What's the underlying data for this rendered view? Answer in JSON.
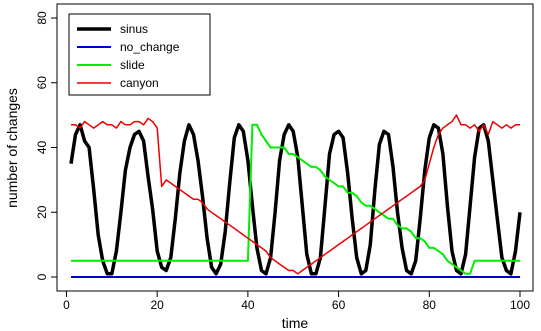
{
  "chart_data": {
    "type": "line",
    "title": "",
    "xlabel": "time",
    "ylabel": "number of changes",
    "xlim": [
      1,
      100
    ],
    "ylim": [
      0,
      80
    ],
    "xticks": [
      0,
      20,
      40,
      60,
      80,
      100
    ],
    "yticks": [
      0,
      20,
      40,
      60,
      80
    ],
    "grid": false,
    "legend_position": "top-left",
    "series": [
      {
        "name": "sinus",
        "color": "#000000",
        "x": [
          1,
          2,
          3,
          4,
          5,
          6,
          7,
          8,
          9,
          10,
          11,
          12,
          13,
          14,
          15,
          16,
          17,
          18,
          19,
          20,
          21,
          22,
          23,
          24,
          25,
          26,
          27,
          28,
          29,
          30,
          31,
          32,
          33,
          34,
          35,
          36,
          37,
          38,
          39,
          40,
          41,
          42,
          43,
          44,
          45,
          46,
          47,
          48,
          49,
          50,
          51,
          52,
          53,
          54,
          55,
          56,
          57,
          58,
          59,
          60,
          61,
          62,
          63,
          64,
          65,
          66,
          67,
          68,
          69,
          70,
          71,
          72,
          73,
          74,
          75,
          76,
          77,
          78,
          79,
          80,
          81,
          82,
          83,
          84,
          85,
          86,
          87,
          88,
          89,
          90,
          91,
          92,
          93,
          94,
          95,
          96,
          97,
          98,
          99,
          100
        ],
        "values": [
          35,
          44,
          47,
          42,
          40,
          27,
          13,
          5,
          1,
          1,
          8,
          20,
          33,
          40,
          44,
          45,
          42,
          31,
          21,
          8,
          3,
          2,
          6,
          18,
          32,
          42,
          47,
          44,
          36,
          25,
          12,
          3,
          1,
          4,
          14,
          29,
          43,
          47,
          45,
          36,
          22,
          9,
          2,
          1,
          6,
          20,
          36,
          44,
          47,
          45,
          37,
          22,
          7,
          1,
          1,
          6,
          22,
          38,
          44,
          45,
          43,
          32,
          18,
          6,
          1,
          2,
          10,
          27,
          41,
          45,
          44,
          34,
          20,
          9,
          2,
          1,
          5,
          18,
          33,
          43,
          47,
          46,
          38,
          22,
          8,
          2,
          1,
          7,
          22,
          37,
          46,
          47,
          42,
          30,
          18,
          6,
          2,
          1,
          8,
          20
        ]
      },
      {
        "name": "no_change",
        "color": "#0000cc",
        "x": [
          1,
          100
        ],
        "values": [
          0,
          0
        ]
      },
      {
        "name": "slide",
        "color": "#00ee00",
        "x": [
          1,
          40,
          41,
          42,
          43,
          44,
          45,
          46,
          47,
          48,
          49,
          50,
          51,
          52,
          53,
          54,
          55,
          56,
          57,
          58,
          59,
          60,
          61,
          62,
          63,
          64,
          65,
          66,
          67,
          68,
          69,
          70,
          71,
          72,
          73,
          74,
          75,
          76,
          77,
          78,
          79,
          80,
          81,
          82,
          83,
          84,
          85,
          86,
          87,
          88,
          89,
          90,
          91,
          100
        ],
        "values": [
          5,
          5,
          47,
          47,
          44,
          42,
          40,
          40,
          40,
          40,
          38,
          38,
          37,
          36,
          35,
          34,
          34,
          33,
          31,
          30,
          29,
          28,
          28,
          26,
          26,
          25,
          23,
          22,
          22,
          21,
          20,
          19,
          18,
          18,
          16,
          15,
          15,
          14,
          12,
          12,
          11,
          9,
          9,
          8,
          7,
          5,
          4,
          3,
          2,
          1,
          1,
          5,
          5,
          5
        ]
      },
      {
        "name": "canyon",
        "color": "#ee0000",
        "x": [
          1,
          2,
          3,
          4,
          5,
          6,
          7,
          8,
          9,
          10,
          11,
          12,
          13,
          14,
          15,
          16,
          17,
          18,
          19,
          20,
          21,
          22,
          23,
          24,
          25,
          26,
          27,
          28,
          29,
          30,
          31,
          32,
          33,
          34,
          35,
          36,
          37,
          38,
          39,
          40,
          41,
          42,
          43,
          44,
          45,
          46,
          47,
          48,
          49,
          50,
          51,
          52,
          53,
          54,
          55,
          56,
          57,
          58,
          59,
          60,
          61,
          62,
          63,
          64,
          65,
          66,
          67,
          68,
          69,
          70,
          71,
          72,
          73,
          74,
          75,
          76,
          77,
          78,
          79,
          80,
          81,
          82,
          83,
          84,
          85,
          86,
          87,
          88,
          89,
          90,
          91,
          92,
          93,
          94,
          95,
          96,
          97,
          98,
          99,
          100
        ],
        "values": [
          47,
          47,
          46,
          48,
          47,
          46,
          47,
          48,
          47,
          47,
          46,
          48,
          47,
          47,
          48,
          48,
          47,
          49,
          48,
          46,
          28,
          30,
          29,
          28,
          27,
          26,
          25,
          24,
          24,
          23,
          21,
          20,
          19,
          18,
          17,
          16,
          15,
          14,
          13,
          12,
          11,
          10,
          9,
          8,
          6,
          5,
          4,
          3,
          2,
          2,
          1,
          2,
          3,
          4,
          5,
          6,
          7,
          8,
          9,
          10,
          11,
          12,
          13,
          14,
          15,
          16,
          17,
          18,
          19,
          20,
          21,
          22,
          23,
          24,
          25,
          26,
          27,
          28,
          30,
          35,
          40,
          44,
          46,
          47,
          48,
          50,
          47,
          47,
          46,
          47,
          45,
          47,
          44,
          48,
          47,
          46,
          47,
          46,
          47,
          47
        ]
      }
    ]
  }
}
